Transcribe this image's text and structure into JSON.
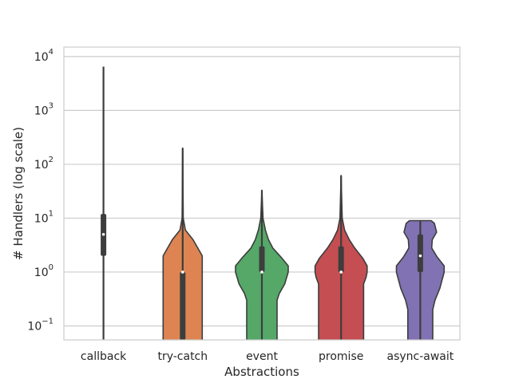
{
  "chart_data": {
    "type": "violin",
    "xlabel": "Abstractions",
    "ylabel": "# Handlers (log scale)",
    "yscale": "log",
    "ylim": [
      0.055,
      15000
    ],
    "yticks": [
      {
        "value": 0.1,
        "base": "10",
        "exp": "−1"
      },
      {
        "value": 1,
        "base": "10",
        "exp": "0"
      },
      {
        "value": 10,
        "base": "10",
        "exp": "1"
      },
      {
        "value": 100,
        "base": "10",
        "exp": "2"
      },
      {
        "value": 1000,
        "base": "10",
        "exp": "3"
      },
      {
        "value": 10000,
        "base": "10",
        "exp": "4"
      }
    ],
    "grid": "horizontal",
    "categories": [
      "callback",
      "try-catch",
      "event",
      "promise",
      "async-await"
    ],
    "series": [
      {
        "category": "callback",
        "color": "#4c72b0",
        "min": 0.055,
        "q1": 2,
        "median": 5,
        "q3": 12,
        "max": 6500,
        "density": [
          [
            0.055,
            0
          ],
          [
            6500,
            0
          ]
        ]
      },
      {
        "category": "try-catch",
        "color": "#dd8452",
        "min": 0.055,
        "q1": 0.055,
        "median": 1,
        "q3": 1,
        "max": 200,
        "density": [
          [
            0.055,
            0.72
          ],
          [
            1,
            0.72
          ],
          [
            2,
            0.72
          ],
          [
            4,
            0.38
          ],
          [
            6,
            0.1
          ],
          [
            10,
            0.02
          ],
          [
            200,
            0
          ]
        ]
      },
      {
        "category": "event",
        "color": "#55a868",
        "min": 0.055,
        "q1": 1,
        "median": 1,
        "q3": 3,
        "max": 33,
        "density": [
          [
            0.055,
            0.56
          ],
          [
            0.3,
            0.56
          ],
          [
            0.4,
            0.64
          ],
          [
            0.6,
            0.84
          ],
          [
            1,
            0.97
          ],
          [
            1.3,
            0.97
          ],
          [
            1.8,
            0.74
          ],
          [
            2.8,
            0.4
          ],
          [
            4,
            0.24
          ],
          [
            6,
            0.13
          ],
          [
            10,
            0.04
          ],
          [
            33,
            0
          ]
        ]
      },
      {
        "category": "promise",
        "color": "#c44e52",
        "min": 0.055,
        "q1": 1,
        "median": 1,
        "q3": 3,
        "max": 62,
        "density": [
          [
            0.055,
            0.83
          ],
          [
            0.6,
            0.83
          ],
          [
            0.8,
            0.92
          ],
          [
            1,
            0.96
          ],
          [
            1.3,
            0.96
          ],
          [
            1.8,
            0.8
          ],
          [
            2.8,
            0.5
          ],
          [
            4,
            0.3
          ],
          [
            6,
            0.13
          ],
          [
            10,
            0.04
          ],
          [
            62,
            0
          ]
        ]
      },
      {
        "category": "async-await",
        "color": "#8172b3",
        "min": 0.055,
        "q1": 1,
        "median": 2,
        "q3": 5,
        "max": 9,
        "density": [
          [
            0.055,
            0.46
          ],
          [
            0.2,
            0.46
          ],
          [
            0.3,
            0.54
          ],
          [
            0.5,
            0.72
          ],
          [
            1,
            0.88
          ],
          [
            1.3,
            0.88
          ],
          [
            1.9,
            0.62
          ],
          [
            2.8,
            0.42
          ],
          [
            4,
            0.44
          ],
          [
            5.5,
            0.6
          ],
          [
            8,
            0.52
          ],
          [
            9,
            0.4
          ]
        ]
      }
    ]
  }
}
